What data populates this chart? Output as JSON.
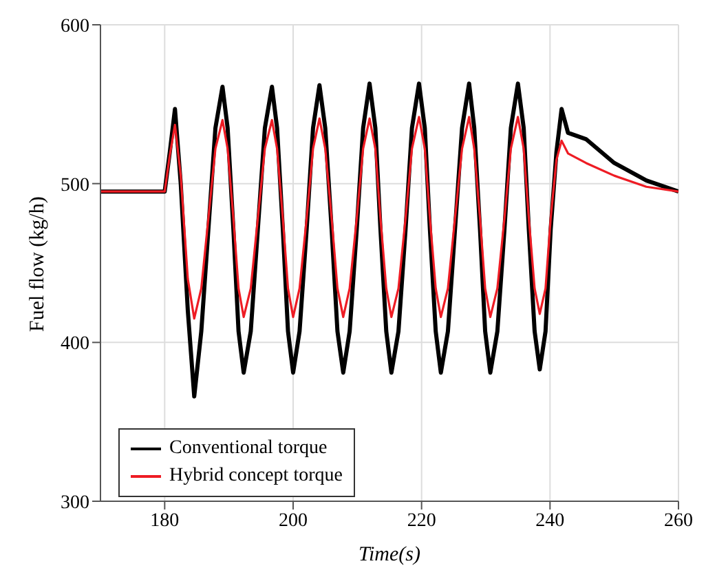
{
  "chart_data": {
    "type": "line",
    "xlabel": "Time(s)",
    "ylabel": "Fuel flow (kg/h)",
    "x": [
      170,
      180,
      180.8,
      181.6,
      182.5,
      183.6,
      184.6,
      185.7,
      186.8,
      187.9,
      189,
      189.8,
      190.7,
      191.5,
      192.3,
      193.4,
      194.5,
      195.6,
      196.7,
      197.5,
      198.4,
      199.2,
      200,
      201,
      202.1,
      203.1,
      204.1,
      205,
      206,
      206.9,
      207.8,
      208.8,
      209.9,
      210.9,
      211.9,
      212.8,
      213.6,
      214.5,
      215.3,
      216.4,
      217.5,
      218.5,
      219.6,
      220.5,
      221.3,
      222.2,
      223,
      224.1,
      225.2,
      226.3,
      227.4,
      228.2,
      229.1,
      229.9,
      230.7,
      231.8,
      232.9,
      233.9,
      235,
      235.9,
      236.7,
      237.6,
      238.4,
      239.3,
      240.1,
      241,
      241.8,
      242.8,
      245.6,
      250,
      255,
      260
    ],
    "series": [
      {
        "name": "Conventional torque",
        "color": "#000000",
        "values": [
          495,
          495,
          520,
          547,
          500,
          420,
          366,
          407,
          471,
          535,
          561,
          535,
          471,
          407,
          381,
          407,
          471,
          535,
          561,
          535,
          471,
          407,
          381,
          407,
          471,
          535,
          562,
          535,
          471,
          407,
          381,
          407,
          471,
          535,
          563,
          535,
          471,
          407,
          381,
          407,
          471,
          535,
          563,
          535,
          471,
          407,
          381,
          407,
          471,
          535,
          563,
          535,
          471,
          407,
          381,
          407,
          471,
          535,
          563,
          535,
          471,
          407,
          383,
          407,
          471,
          520,
          547,
          532,
          528,
          513,
          502,
          495
        ]
      },
      {
        "name": "Hybrid concept torque",
        "color": "#ee1c24",
        "values": [
          495,
          495,
          518,
          537,
          505,
          440,
          415,
          434,
          478,
          522,
          540,
          522,
          478,
          434,
          416,
          434,
          478,
          522,
          540,
          522,
          478,
          434,
          416,
          434,
          478,
          522,
          541,
          522,
          478,
          434,
          416,
          434,
          478,
          522,
          541,
          522,
          478,
          434,
          416,
          434,
          478,
          522,
          542,
          522,
          478,
          434,
          416,
          434,
          478,
          522,
          542,
          522,
          478,
          434,
          416,
          434,
          478,
          522,
          542,
          522,
          478,
          434,
          418,
          434,
          478,
          515,
          527,
          519,
          513,
          505,
          498,
          495
        ]
      }
    ],
    "xlim": [
      170,
      260
    ],
    "xticks": [
      180,
      200,
      220,
      240,
      260
    ],
    "ylim": [
      300,
      600
    ],
    "yticks": [
      300,
      400,
      500,
      600
    ],
    "grid": true,
    "legend": "bottom left",
    "marker": "none",
    "line_style": "solid"
  }
}
